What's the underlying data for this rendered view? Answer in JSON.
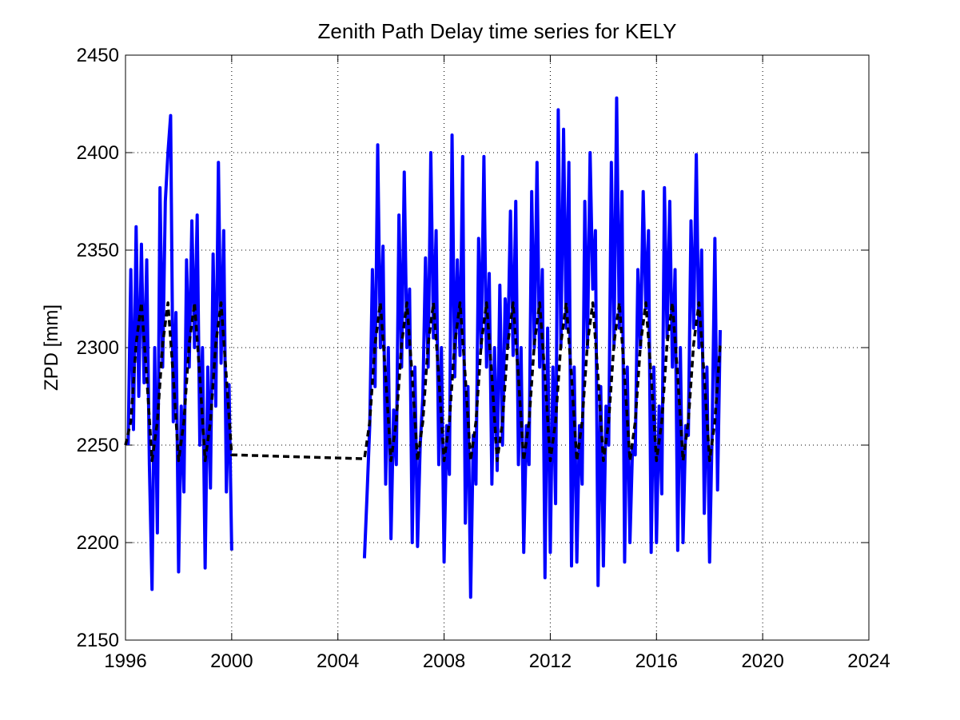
{
  "chart_data": {
    "type": "line",
    "title": "Zenith Path Delay time series for KELY",
    "y_label": "ZPD [mm]",
    "xlim": [
      1996,
      2024
    ],
    "xticks": [
      1996,
      2000,
      2004,
      2008,
      2012,
      2016,
      2020,
      2024
    ],
    "ylim": [
      2150,
      2450
    ],
    "yticks": [
      2150,
      2200,
      2250,
      2300,
      2350,
      2400,
      2450
    ],
    "grid": true,
    "series": [
      {
        "color": "#0000ff",
        "linestyle": "solid",
        "x": [
          1996.1,
          1996.2,
          1996.3,
          1996.4,
          1996.5,
          1996.6,
          1996.7,
          1996.8,
          1996.9,
          1997.0,
          1997.1,
          1997.2,
          1997.3,
          1997.4,
          1997.5,
          1997.6,
          1997.7,
          1997.8,
          1997.9,
          1998.0,
          1998.1,
          1998.2,
          1998.3,
          1998.4,
          1998.5,
          1998.6,
          1998.7,
          1998.8,
          1998.9,
          1999.0,
          1999.1,
          1999.2,
          1999.3,
          1999.4,
          1999.5,
          1999.6,
          1999.7,
          1999.8,
          1999.9,
          2000.0,
          2002.0,
          2005.0,
          2005.1,
          2005.2,
          2005.3,
          2005.4,
          2005.5,
          2005.6,
          2005.7,
          2005.8,
          2005.9,
          2006.0,
          2006.1,
          2006.2,
          2006.3,
          2006.4,
          2006.5,
          2006.6,
          2006.7,
          2006.8,
          2006.9,
          2007.0,
          2007.1,
          2007.2,
          2007.3,
          2007.4,
          2007.5,
          2007.6,
          2007.7,
          2007.8,
          2007.9,
          2008.0,
          2008.1,
          2008.2,
          2008.3,
          2008.4,
          2008.5,
          2008.6,
          2008.7,
          2008.8,
          2008.9,
          2009.0,
          2009.1,
          2009.2,
          2009.3,
          2009.4,
          2009.5,
          2009.6,
          2009.7,
          2009.8,
          2009.9,
          2010.0,
          2010.1,
          2010.2,
          2010.3,
          2010.4,
          2010.5,
          2010.6,
          2010.7,
          2010.8,
          2010.9,
          2011.0,
          2011.1,
          2011.2,
          2011.3,
          2011.4,
          2011.5,
          2011.6,
          2011.7,
          2011.8,
          2011.9,
          2012.0,
          2012.1,
          2012.2,
          2012.3,
          2012.4,
          2012.5,
          2012.6,
          2012.7,
          2012.8,
          2012.9,
          2013.0,
          2013.1,
          2013.2,
          2013.3,
          2013.4,
          2013.5,
          2013.6,
          2013.7,
          2013.8,
          2013.9,
          2014.0,
          2014.1,
          2014.2,
          2014.3,
          2014.4,
          2014.5,
          2014.6,
          2014.7,
          2014.8,
          2014.9,
          2015.0,
          2015.1,
          2015.2,
          2015.3,
          2015.4,
          2015.5,
          2015.6,
          2015.7,
          2015.8,
          2015.9,
          2016.0,
          2016.1,
          2016.2,
          2016.3,
          2016.4,
          2016.5,
          2016.6,
          2016.7,
          2016.8,
          2016.9,
          2017.0,
          2017.1,
          2017.2,
          2017.3,
          2017.4,
          2017.5,
          2017.6,
          2017.7,
          2017.8,
          2017.9,
          2018.0,
          2018.1,
          2018.2,
          2018.3,
          2018.4
        ],
        "values": [
          2250,
          2340,
          2258,
          2362,
          2275,
          2353,
          2282,
          2345,
          2240,
          2176,
          2300,
          2205,
          2382,
          2290,
          2375,
          2400,
          2419,
          2262,
          2318,
          2185,
          2270,
          2226,
          2345,
          2290,
          2365,
          2300,
          2368,
          2250,
          2300,
          2187,
          2290,
          2228,
          2348,
          2270,
          2395,
          2292,
          2360,
          2226,
          2281,
          2196,
          null,
          2192,
          2225,
          2260,
          2340,
          2280,
          2404,
          2300,
          2352,
          2230,
          2300,
          2202,
          2268,
          2240,
          2368,
          2290,
          2390,
          2300,
          2330,
          2200,
          2290,
          2198,
          2250,
          2275,
          2346,
          2290,
          2400,
          2305,
          2360,
          2240,
          2300,
          2190,
          2260,
          2235,
          2409,
          2285,
          2345,
          2296,
          2398,
          2210,
          2280,
          2172,
          2255,
          2230,
          2356,
          2300,
          2398,
          2290,
          2338,
          2230,
          2300,
          2237,
          2332,
          2250,
          2325,
          2300,
          2370,
          2296,
          2375,
          2240,
          2300,
          2195,
          2260,
          2240,
          2380,
          2300,
          2395,
          2290,
          2340,
          2182,
          2310,
          2195,
          2290,
          2220,
          2422,
          2300,
          2412,
          2310,
          2395,
          2188,
          2290,
          2190,
          2260,
          2230,
          2375,
          2300,
          2400,
          2330,
          2360,
          2178,
          2280,
          2188,
          2270,
          2250,
          2395,
          2300,
          2428,
          2310,
          2380,
          2190,
          2290,
          2200,
          2250,
          2245,
          2340,
          2300,
          2380,
          2320,
          2360,
          2195,
          2290,
          2200,
          2270,
          2225,
          2382,
          2305,
          2375,
          2290,
          2340,
          2196,
          2300,
          2200,
          2260,
          2255,
          2365,
          2310,
          2399,
          2300,
          2350,
          2215,
          2290,
          2190,
          2260,
          2356,
          2227,
          2309
        ]
      },
      {
        "color": "#000000",
        "linestyle": "dashed",
        "x": [
          1996.0,
          1996.2,
          1996.4,
          1996.6,
          1996.8,
          1997.0,
          1997.2,
          1997.4,
          1997.6,
          1997.8,
          1998.0,
          1998.2,
          1998.4,
          1998.6,
          1998.8,
          1999.0,
          1999.2,
          1999.4,
          1999.6,
          1999.8,
          2000.0,
          2005.0,
          2005.2,
          2005.4,
          2005.6,
          2005.8,
          2006.0,
          2006.2,
          2006.4,
          2006.6,
          2006.8,
          2007.0,
          2007.2,
          2007.4,
          2007.6,
          2007.8,
          2008.0,
          2008.2,
          2008.4,
          2008.6,
          2008.8,
          2009.0,
          2009.2,
          2009.4,
          2009.6,
          2009.8,
          2010.0,
          2010.2,
          2010.4,
          2010.6,
          2010.8,
          2011.0,
          2011.2,
          2011.4,
          2011.6,
          2011.8,
          2012.0,
          2012.2,
          2012.4,
          2012.6,
          2012.8,
          2013.0,
          2013.2,
          2013.4,
          2013.6,
          2013.8,
          2014.0,
          2014.2,
          2014.4,
          2014.6,
          2014.8,
          2015.0,
          2015.2,
          2015.4,
          2015.6,
          2015.8,
          2016.0,
          2016.2,
          2016.4,
          2016.6,
          2016.8,
          2017.0,
          2017.2,
          2017.4,
          2017.6,
          2017.8,
          2018.0,
          2018.2,
          2018.4
        ],
        "values": [
          2250,
          2262,
          2302,
          2323,
          2285,
          2242,
          2262,
          2302,
          2323,
          2285,
          2242,
          2262,
          2302,
          2323,
          2285,
          2242,
          2262,
          2302,
          2323,
          2285,
          2245,
          2243,
          2262,
          2302,
          2323,
          2285,
          2242,
          2262,
          2302,
          2323,
          2285,
          2242,
          2262,
          2302,
          2323,
          2285,
          2242,
          2262,
          2302,
          2323,
          2285,
          2242,
          2262,
          2302,
          2323,
          2285,
          2242,
          2262,
          2302,
          2323,
          2285,
          2242,
          2262,
          2302,
          2323,
          2285,
          2242,
          2262,
          2302,
          2323,
          2285,
          2242,
          2262,
          2302,
          2323,
          2285,
          2242,
          2262,
          2302,
          2323,
          2285,
          2242,
          2262,
          2302,
          2323,
          2285,
          2242,
          2262,
          2302,
          2323,
          2285,
          2242,
          2262,
          2302,
          2323,
          2285,
          2242,
          2262,
          2302
        ]
      }
    ]
  }
}
